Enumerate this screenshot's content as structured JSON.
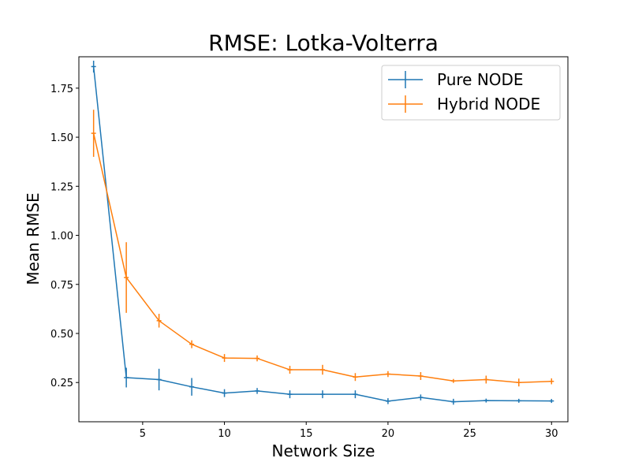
{
  "chart_data": {
    "type": "line",
    "title": "RMSE: Lotka-Volterra",
    "xlabel": "Network Size",
    "ylabel": "Mean RMSE",
    "xlim": [
      1.1,
      31.0
    ],
    "ylim": [
      0.05,
      1.91
    ],
    "xticks": [
      5,
      10,
      15,
      20,
      25,
      30
    ],
    "yticks": [
      0.25,
      0.5,
      0.75,
      1.0,
      1.25,
      1.5,
      1.75
    ],
    "ytick_labels": [
      "0.25",
      "0.50",
      "0.75",
      "1.00",
      "1.25",
      "1.50",
      "1.75"
    ],
    "legend_position": "top-right",
    "grid": false,
    "x": [
      2,
      4,
      6,
      8,
      10,
      12,
      14,
      16,
      18,
      20,
      22,
      24,
      26,
      28,
      30
    ],
    "series": [
      {
        "name": "Pure NODE",
        "color": "#1f77b4",
        "values": [
          1.86,
          0.275,
          0.265,
          0.228,
          0.196,
          0.207,
          0.19,
          0.19,
          0.19,
          0.155,
          0.174,
          0.152,
          0.158,
          0.157,
          0.156
        ],
        "errors": [
          0.03,
          0.05,
          0.055,
          0.045,
          0.02,
          0.015,
          0.02,
          0.02,
          0.02,
          0.015,
          0.015,
          0.015,
          0.01,
          0.01,
          0.01
        ]
      },
      {
        "name": "Hybrid NODE",
        "color": "#ff7f0e",
        "values": [
          1.52,
          0.785,
          0.565,
          0.445,
          0.375,
          0.373,
          0.315,
          0.315,
          0.278,
          0.293,
          0.283,
          0.258,
          0.265,
          0.25,
          0.256
        ],
        "errors": [
          0.12,
          0.18,
          0.035,
          0.02,
          0.02,
          0.015,
          0.02,
          0.025,
          0.02,
          0.015,
          0.02,
          0.01,
          0.02,
          0.02,
          0.015
        ]
      }
    ]
  }
}
